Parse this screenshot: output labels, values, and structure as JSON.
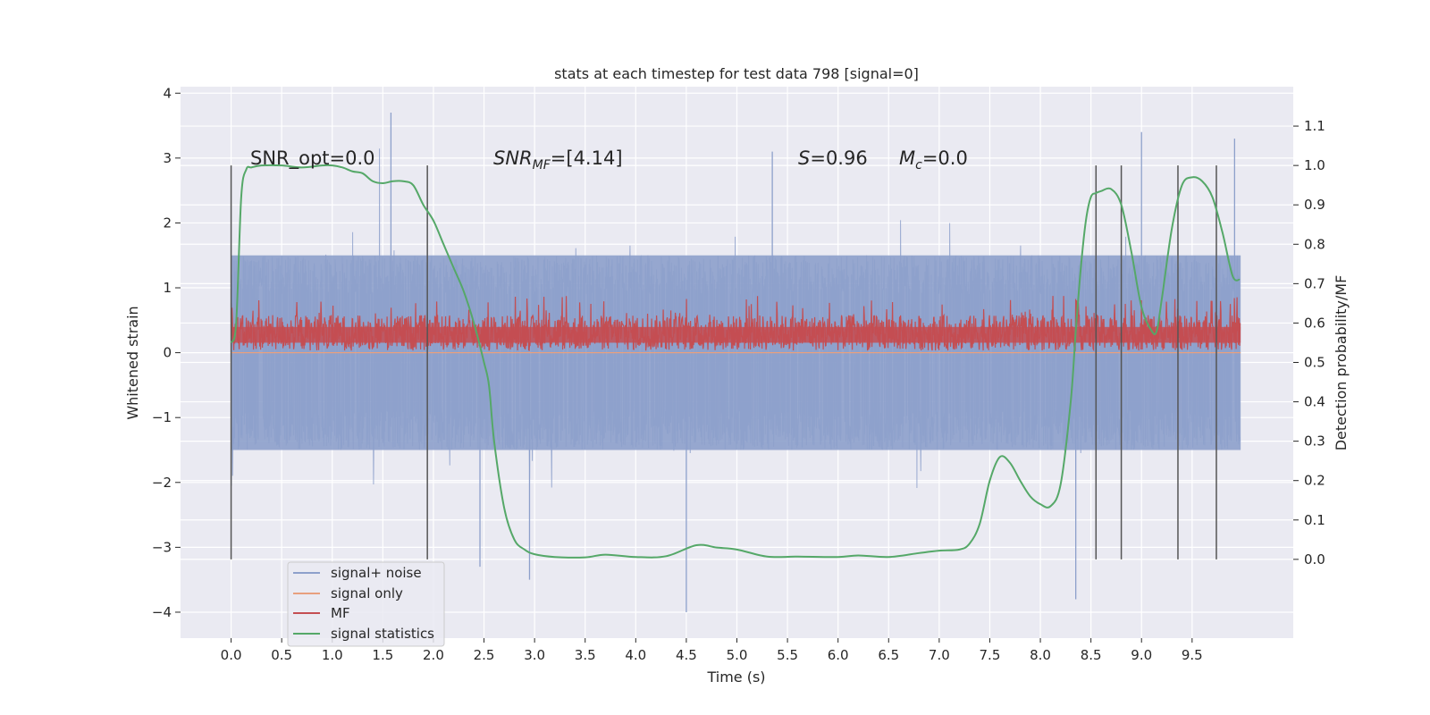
{
  "chart_data": {
    "type": "line",
    "title": "stats at each timestep for test data 798 [signal=0]",
    "xlabel": "Time (s)",
    "ylabel_left": "Whitened strain",
    "ylabel_right": "Detection probability/MF",
    "xlim": [
      -0.5,
      10.5
    ],
    "ylim_left": [
      -4.4,
      4.1
    ],
    "ylim_right": [
      -0.2,
      1.2
    ],
    "x_ticks": [
      "0.0",
      "0.5",
      "1.0",
      "1.5",
      "2.0",
      "2.5",
      "3.0",
      "3.5",
      "4.0",
      "4.5",
      "5.0",
      "5.5",
      "6.0",
      "6.5",
      "7.0",
      "7.5",
      "8.0",
      "8.5",
      "9.0",
      "9.5"
    ],
    "x_tick_values": [
      0,
      0.5,
      1,
      1.5,
      2,
      2.5,
      3,
      3.5,
      4,
      4.5,
      5,
      5.5,
      6,
      6.5,
      7,
      7.5,
      8,
      8.5,
      9,
      9.5
    ],
    "y_left_ticks": [
      "4",
      "3",
      "2",
      "1",
      "0",
      "−1",
      "−2",
      "−3",
      "−4"
    ],
    "y_left_tick_values": [
      4,
      3,
      2,
      1,
      0,
      -1,
      -2,
      -3,
      -4
    ],
    "y_right_ticks": [
      "1.1",
      "1.0",
      "0.9",
      "0.8",
      "0.7",
      "0.6",
      "0.5",
      "0.4",
      "0.3",
      "0.2",
      "0.1",
      "0.0"
    ],
    "y_right_tick_values": [
      1.1,
      1.0,
      0.9,
      0.8,
      0.7,
      0.6,
      0.5,
      0.4,
      0.3,
      0.2,
      0.1,
      0.0
    ],
    "grid": true,
    "legend_position": "lower-left",
    "annotations": {
      "snr_opt": "SNR_opt=0.0",
      "snr_mf_italic": "SNR",
      "snr_mf_sub": "MF",
      "snr_mf_value": "=[4.14]",
      "s_italic": "S",
      "s_value": "=0.96",
      "mc_italic": "M",
      "mc_sub": "c",
      "mc_value": "=0.0"
    },
    "series": [
      {
        "name": "signal+ noise",
        "color": "#8da0cb",
        "axis": "left",
        "envelope": {
          "typical_min": -1.5,
          "typical_max": 1.5,
          "extreme_min": -4.0,
          "extreme_max": 3.7
        }
      },
      {
        "name": "signal only",
        "color": "#e8a07e",
        "axis": "left",
        "values": "zero"
      },
      {
        "name": "MF",
        "color": "#c44e52",
        "axis": "right",
        "typical_range": [
          0.53,
          0.62
        ],
        "peak": 0.67
      },
      {
        "name": "signal statistics",
        "color": "#55a868",
        "axis": "right",
        "x": [
          0.0,
          0.05,
          0.1,
          0.15,
          0.2,
          0.3,
          0.5,
          0.7,
          0.9,
          1.0,
          1.1,
          1.2,
          1.3,
          1.4,
          1.5,
          1.6,
          1.7,
          1.8,
          1.9,
          2.0,
          2.1,
          2.2,
          2.3,
          2.4,
          2.5,
          2.55,
          2.6,
          2.7,
          2.8,
          2.9,
          3.0,
          3.2,
          3.5,
          3.7,
          4.0,
          4.3,
          4.6,
          4.8,
          5.0,
          5.3,
          5.6,
          6.0,
          6.2,
          6.5,
          6.8,
          7.0,
          7.2,
          7.3,
          7.4,
          7.5,
          7.6,
          7.7,
          7.8,
          7.9,
          8.0,
          8.1,
          8.2,
          8.3,
          8.35,
          8.4,
          8.45,
          8.5,
          8.55,
          8.6,
          8.7,
          8.8,
          8.9,
          9.0,
          9.1,
          9.15,
          9.2,
          9.3,
          9.4,
          9.5,
          9.6,
          9.7,
          9.8,
          9.9,
          9.97
        ],
        "y": [
          0.55,
          0.6,
          0.92,
          0.99,
          0.995,
          1.0,
          1.0,
          0.995,
          1.0,
          1.0,
          0.995,
          0.985,
          0.98,
          0.96,
          0.955,
          0.96,
          0.96,
          0.95,
          0.9,
          0.86,
          0.8,
          0.74,
          0.68,
          0.6,
          0.5,
          0.44,
          0.3,
          0.13,
          0.05,
          0.025,
          0.013,
          0.006,
          0.005,
          0.012,
          0.006,
          0.008,
          0.036,
          0.03,
          0.025,
          0.007,
          0.007,
          0.006,
          0.01,
          0.006,
          0.016,
          0.022,
          0.025,
          0.04,
          0.09,
          0.2,
          0.26,
          0.245,
          0.2,
          0.16,
          0.14,
          0.135,
          0.19,
          0.4,
          0.58,
          0.74,
          0.86,
          0.92,
          0.93,
          0.935,
          0.94,
          0.9,
          0.78,
          0.64,
          0.58,
          0.58,
          0.66,
          0.84,
          0.95,
          0.97,
          0.96,
          0.92,
          0.83,
          0.72,
          0.71
        ]
      }
    ],
    "vertical_markers_x": [
      0.0,
      1.94,
      8.55,
      8.8,
      9.36,
      9.74
    ]
  }
}
